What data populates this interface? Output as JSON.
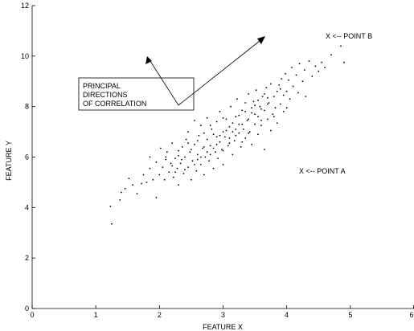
{
  "chart_data": {
    "type": "scatter",
    "xlabel": "FEATURE X",
    "ylabel": "FEATURE Y",
    "xlim": [
      0,
      6
    ],
    "ylim": [
      0,
      12
    ],
    "xticks": [
      "0",
      "1",
      "2",
      "3",
      "4",
      "5",
      "6"
    ],
    "yticks": [
      "0",
      "2",
      "4",
      "6",
      "8",
      "10",
      "12"
    ],
    "grid": false,
    "marker_color": "#000000",
    "annotations": {
      "box_lines": [
        "PRINCIPAL",
        "DIRECTIONS",
        "OF CORRELATION"
      ],
      "point_a": "X <-- POINT A",
      "point_b": "X <-- POINT B"
    },
    "points": [
      [
        1.25,
        3.35
      ],
      [
        1.23,
        4.05
      ],
      [
        1.38,
        4.3
      ],
      [
        1.4,
        4.6
      ],
      [
        1.46,
        4.75
      ],
      [
        1.52,
        5.15
      ],
      [
        1.58,
        4.9
      ],
      [
        1.65,
        4.55
      ],
      [
        1.72,
        4.95
      ],
      [
        1.75,
        5.3
      ],
      [
        1.8,
        5.0
      ],
      [
        1.85,
        5.55
      ],
      [
        1.85,
        6.0
      ],
      [
        1.9,
        5.1
      ],
      [
        1.95,
        4.4
      ],
      [
        1.95,
        5.8
      ],
      [
        2.0,
        5.3
      ],
      [
        2.02,
        6.35
      ],
      [
        2.05,
        5.6
      ],
      [
        2.08,
        5.1
      ],
      [
        2.1,
        5.9
      ],
      [
        2.12,
        6.2
      ],
      [
        2.15,
        5.4
      ],
      [
        2.18,
        5.75
      ],
      [
        2.2,
        6.55
      ],
      [
        2.22,
        5.2
      ],
      [
        2.25,
        5.95
      ],
      [
        2.28,
        5.55
      ],
      [
        2.3,
        6.25
      ],
      [
        2.3,
        4.9
      ],
      [
        2.33,
        5.75
      ],
      [
        2.36,
        6.4
      ],
      [
        2.38,
        5.35
      ],
      [
        2.4,
        6.0
      ],
      [
        2.42,
        6.7
      ],
      [
        2.45,
        5.6
      ],
      [
        2.45,
        7.0
      ],
      [
        2.48,
        6.2
      ],
      [
        2.5,
        5.1
      ],
      [
        2.52,
        5.85
      ],
      [
        2.55,
        6.5
      ],
      [
        2.55,
        7.45
      ],
      [
        2.58,
        5.45
      ],
      [
        2.6,
        6.1
      ],
      [
        2.62,
        6.85
      ],
      [
        2.65,
        5.7
      ],
      [
        2.65,
        7.25
      ],
      [
        2.68,
        6.35
      ],
      [
        2.7,
        5.3
      ],
      [
        2.72,
        6.0
      ],
      [
        2.75,
        6.7
      ],
      [
        2.75,
        7.55
      ],
      [
        2.78,
        5.85
      ],
      [
        2.8,
        6.45
      ],
      [
        2.82,
        7.1
      ],
      [
        2.85,
        5.55
      ],
      [
        2.85,
        6.9
      ],
      [
        2.88,
        6.2
      ],
      [
        2.9,
        7.4
      ],
      [
        2.92,
        5.95
      ],
      [
        2.95,
        6.6
      ],
      [
        2.95,
        7.8
      ],
      [
        2.98,
        6.3
      ],
      [
        3.0,
        7.0
      ],
      [
        3.0,
        5.7
      ],
      [
        3.03,
        6.8
      ],
      [
        3.05,
        7.5
      ],
      [
        3.08,
        6.45
      ],
      [
        3.1,
        7.2
      ],
      [
        3.12,
        8.0
      ],
      [
        3.15,
        6.1
      ],
      [
        3.15,
        7.0
      ],
      [
        3.18,
        6.65
      ],
      [
        3.2,
        7.6
      ],
      [
        3.22,
        8.3
      ],
      [
        3.25,
        6.95
      ],
      [
        3.25,
        7.3
      ],
      [
        3.28,
        6.4
      ],
      [
        3.3,
        7.85
      ],
      [
        3.32,
        7.1
      ],
      [
        3.35,
        8.15
      ],
      [
        3.35,
        6.75
      ],
      [
        3.38,
        7.45
      ],
      [
        3.4,
        8.5
      ],
      [
        3.42,
        7.0
      ],
      [
        3.45,
        7.75
      ],
      [
        3.45,
        6.5
      ],
      [
        3.48,
        8.2
      ],
      [
        3.5,
        7.3
      ],
      [
        3.52,
        8.65
      ],
      [
        3.55,
        7.6
      ],
      [
        3.55,
        6.9
      ],
      [
        3.58,
        8.0
      ],
      [
        3.6,
        7.25
      ],
      [
        3.62,
        8.4
      ],
      [
        3.65,
        7.85
      ],
      [
        3.65,
        6.3
      ],
      [
        3.68,
        8.75
      ],
      [
        3.7,
        7.5
      ],
      [
        3.72,
        8.15
      ],
      [
        3.75,
        7.05
      ],
      [
        3.75,
        8.9
      ],
      [
        3.78,
        7.7
      ],
      [
        3.8,
        8.4
      ],
      [
        3.82,
        7.95
      ],
      [
        3.85,
        8.6
      ],
      [
        3.85,
        7.35
      ],
      [
        3.88,
        8.85
      ],
      [
        3.9,
        8.1
      ],
      [
        3.92,
        9.1
      ],
      [
        3.95,
        8.45
      ],
      [
        3.95,
        7.8
      ],
      [
        3.98,
        9.3
      ],
      [
        4.0,
        8.6
      ],
      [
        4.03,
        9.05
      ],
      [
        4.05,
        8.3
      ],
      [
        4.08,
        9.55
      ],
      [
        4.1,
        8.8
      ],
      [
        4.15,
        9.25
      ],
      [
        4.18,
        8.55
      ],
      [
        4.2,
        9.7
      ],
      [
        4.25,
        9.0
      ],
      [
        4.28,
        9.45
      ],
      [
        4.3,
        8.4
      ],
      [
        4.35,
        9.8
      ],
      [
        4.4,
        9.2
      ],
      [
        4.45,
        9.6
      ],
      [
        4.5,
        9.4
      ],
      [
        4.55,
        9.75
      ],
      [
        4.6,
        9.55
      ],
      [
        4.7,
        10.05
      ],
      [
        4.85,
        10.4
      ],
      [
        4.9,
        9.75
      ],
      [
        2.1,
        6.0
      ],
      [
        2.25,
        5.4
      ],
      [
        2.35,
        5.9
      ],
      [
        2.5,
        6.3
      ],
      [
        2.6,
        5.9
      ],
      [
        2.7,
        6.4
      ],
      [
        2.8,
        6.1
      ],
      [
        2.9,
        6.5
      ],
      [
        3.0,
        6.25
      ],
      [
        3.1,
        6.75
      ],
      [
        3.2,
        7.1
      ],
      [
        3.3,
        7.3
      ],
      [
        3.4,
        7.5
      ],
      [
        3.5,
        7.7
      ],
      [
        3.6,
        7.9
      ],
      [
        3.7,
        8.1
      ],
      [
        2.4,
        5.5
      ],
      [
        2.55,
        5.7
      ],
      [
        2.65,
        6.0
      ],
      [
        2.75,
        6.2
      ],
      [
        2.85,
        6.35
      ],
      [
        2.95,
        6.85
      ],
      [
        3.05,
        7.05
      ],
      [
        3.15,
        7.35
      ],
      [
        3.25,
        7.65
      ],
      [
        3.35,
        7.8
      ],
      [
        3.45,
        7.95
      ],
      [
        3.55,
        8.25
      ],
      [
        3.65,
        8.5
      ],
      [
        2.2,
        5.65
      ],
      [
        2.3,
        6.05
      ],
      [
        2.45,
        6.55
      ],
      [
        2.6,
        6.65
      ],
      [
        2.7,
        6.95
      ],
      [
        2.8,
        7.25
      ],
      [
        2.9,
        6.8
      ],
      [
        3.0,
        7.55
      ],
      [
        3.1,
        6.55
      ],
      [
        3.2,
        6.85
      ],
      [
        3.3,
        6.6
      ],
      [
        3.4,
        6.95
      ],
      [
        3.5,
        8.05
      ],
      [
        3.6,
        7.45
      ],
      [
        3.7,
        8.35
      ],
      [
        3.8,
        7.6
      ],
      [
        3.9,
        8.7
      ],
      [
        4.0,
        7.95
      ]
    ]
  }
}
